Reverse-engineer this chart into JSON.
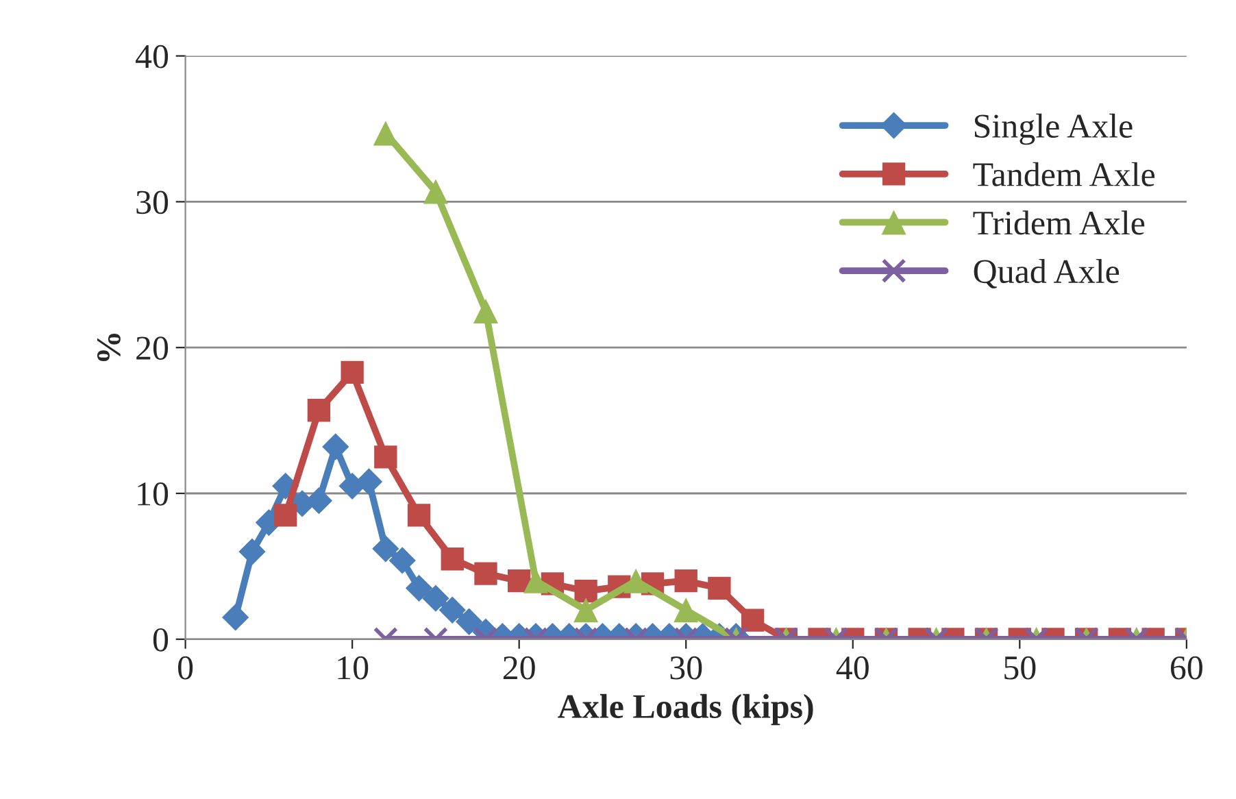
{
  "chart_data": {
    "type": "line",
    "xlabel": "Axle Loads (kips)",
    "ylabel": "%",
    "xlim": [
      0,
      60
    ],
    "xticks": [
      0,
      10,
      20,
      30,
      40,
      50,
      60
    ],
    "ylim": [
      0,
      40
    ],
    "yticks": [
      0,
      10,
      20,
      30,
      40
    ],
    "grid": "y",
    "legend": "right",
    "line_style": "solid",
    "series": [
      {
        "name": "Single Axle",
        "color": "#4a7ebb",
        "marker": "diamond",
        "x": [
          3,
          4,
          5,
          6,
          7,
          8,
          9,
          10,
          11,
          12,
          13,
          14,
          15,
          16,
          17,
          18,
          19,
          20,
          21,
          22,
          23,
          24,
          25,
          26,
          27,
          28,
          29,
          30,
          31,
          32,
          33
        ],
        "values": [
          1.5,
          6,
          8,
          10.5,
          9.3,
          9.5,
          13.2,
          10.5,
          10.8,
          6.2,
          5.4,
          3.5,
          2.8,
          2,
          1.2,
          0.5,
          0.2,
          0.2,
          0.2,
          0.2,
          0.2,
          0.2,
          0.2,
          0.2,
          0.2,
          0.2,
          0.2,
          0.2,
          0.2,
          0.2,
          0.2
        ]
      },
      {
        "name": "Tandem Axle",
        "color": "#be4b48",
        "marker": "square",
        "x": [
          6,
          8,
          10,
          12,
          14,
          16,
          18,
          20,
          22,
          24,
          26,
          28,
          30,
          32,
          34,
          36,
          38,
          40,
          42,
          44,
          46,
          48,
          50,
          52,
          54,
          56,
          58,
          60
        ],
        "values": [
          8.5,
          15.7,
          18.3,
          12.5,
          8.5,
          5.5,
          4.5,
          4,
          3.8,
          3.3,
          3.6,
          3.8,
          4,
          3.5,
          1.3,
          0,
          0,
          0,
          0,
          0,
          0,
          0,
          0,
          0,
          0,
          0,
          0,
          0
        ]
      },
      {
        "name": "Tridem Axle",
        "color": "#98b954",
        "marker": "triangle",
        "x": [
          12,
          15,
          18,
          21,
          24,
          27,
          30,
          33,
          36,
          39,
          42,
          45,
          48,
          51,
          54,
          57,
          60
        ],
        "values": [
          34.7,
          30.7,
          22.5,
          4,
          2,
          4,
          2,
          0,
          0,
          0,
          0,
          0,
          0,
          0,
          0,
          0,
          0
        ]
      },
      {
        "name": "Quad Axle",
        "color": "#7d60a0",
        "marker": "cross",
        "x": [
          12,
          15,
          18,
          21,
          24,
          27,
          30,
          33,
          36,
          39,
          42,
          45,
          48,
          51,
          54,
          57,
          60
        ],
        "values": [
          0,
          0,
          0,
          0,
          0,
          0,
          0,
          0,
          0,
          0,
          0,
          0,
          0,
          0,
          0,
          0,
          0
        ]
      }
    ]
  }
}
